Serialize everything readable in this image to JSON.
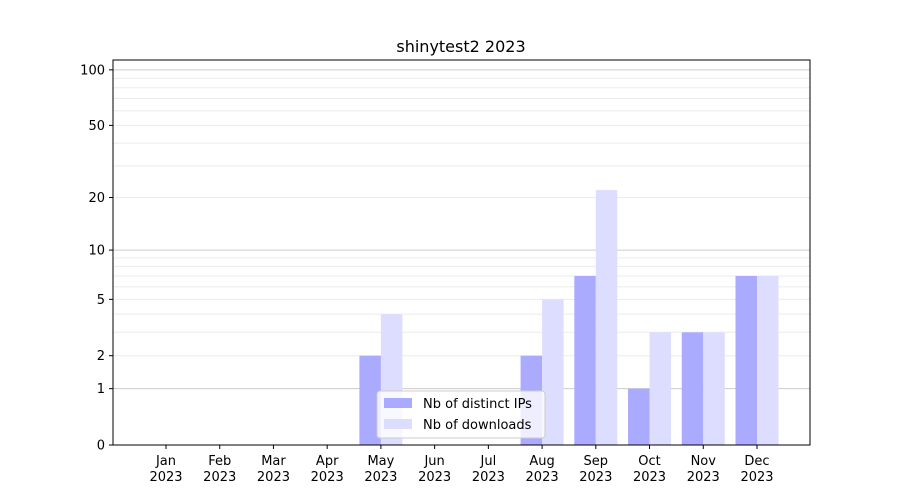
{
  "chart_data": {
    "type": "bar",
    "title": "shinytest2 2023",
    "xlabel": "",
    "ylabel": "",
    "yscale": "symlog",
    "ylim": [
      0,
      113
    ],
    "yticks": [
      0,
      1,
      2,
      5,
      10,
      20,
      50,
      100
    ],
    "grid": true,
    "legend_position": "lower-center",
    "categories": [
      "Jan\n2023",
      "Feb\n2023",
      "Mar\n2023",
      "Apr\n2023",
      "May\n2023",
      "Jun\n2023",
      "Jul\n2023",
      "Aug\n2023",
      "Sep\n2023",
      "Oct\n2023",
      "Nov\n2023",
      "Dec\n2023"
    ],
    "series": [
      {
        "name": "Nb of distinct IPs",
        "color": "#aaaaff",
        "values": [
          0,
          0,
          0,
          0,
          2,
          0,
          0,
          2,
          7,
          1,
          3,
          7
        ]
      },
      {
        "name": "Nb of downloads",
        "color": "#ddddff",
        "values": [
          0,
          0,
          0,
          0,
          4,
          0,
          0,
          5,
          22,
          3,
          3,
          7
        ]
      }
    ]
  }
}
